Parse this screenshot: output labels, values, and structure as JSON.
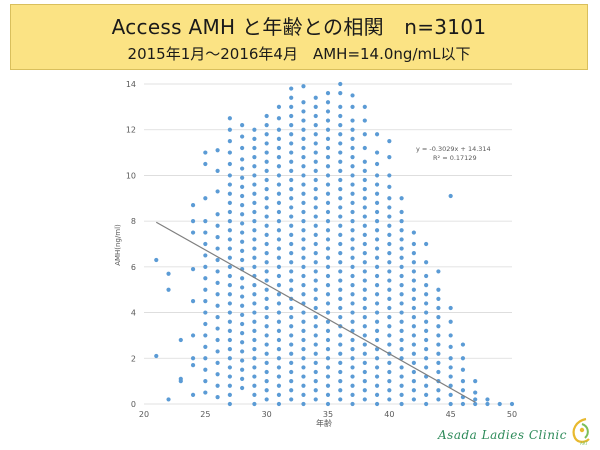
{
  "header": {
    "title": "Access AMH と年齢との相関　n=3101",
    "subtitle": "2015年1月～2016年4月　AMH=14.0ng/mL以下"
  },
  "footer": {
    "clinic_name": "Asada Ladies Clinic",
    "logo_text": "ART"
  },
  "colors": {
    "point": "#5b9bd5",
    "trendline": "#7f7f7f",
    "grid": "#d9d9d9",
    "axis_text": "#595959",
    "title_bg": "#fbe384"
  },
  "chart_data": {
    "type": "scatter",
    "title": "",
    "xlabel": "年齢",
    "ylabel": "AMH(ng/ml)",
    "xlim": [
      20,
      50
    ],
    "ylim": [
      0,
      14
    ],
    "x_ticks": [
      20,
      25,
      30,
      35,
      40,
      45,
      50
    ],
    "y_ticks": [
      0,
      2,
      4,
      6,
      8,
      10,
      12,
      14
    ],
    "grid": "horizontal",
    "trendline": {
      "slope": -0.3029,
      "intercept": 14.314,
      "equation_label": "y = -0.3029x + 14.314",
      "r2_label": "R² = 0.17129",
      "x_range": [
        21,
        47
      ]
    },
    "series": [
      {
        "points_by_age": [
          {
            "x": 21,
            "y": [
              2.1,
              6.3
            ]
          },
          {
            "x": 22,
            "y": [
              0.2,
              5.0,
              5.7
            ]
          },
          {
            "x": 23,
            "y": [
              1.0,
              1.1,
              2.8
            ]
          },
          {
            "x": 24,
            "y": [
              0.4,
              1.7,
              2.0,
              3.0,
              4.5,
              5.9,
              7.5,
              8.0,
              8.7
            ]
          },
          {
            "x": 25,
            "y": [
              0.5,
              1.0,
              1.5,
              2.0,
              2.5,
              3.0,
              3.5,
              4.0,
              4.5,
              5.0,
              5.5,
              6.0,
              6.5,
              7.0,
              7.5,
              8.0,
              9.0,
              10.5,
              11.0
            ]
          },
          {
            "x": 26,
            "y": [
              0.3,
              0.8,
              1.3,
              1.8,
              2.3,
              2.8,
              3.3,
              3.8,
              4.3,
              4.8,
              5.3,
              5.8,
              6.3,
              6.8,
              7.3,
              7.8,
              8.3,
              9.3,
              10.2,
              11.1
            ]
          },
          {
            "x": 27,
            "y": [
              0.0,
              0.4,
              0.8,
              1.2,
              1.6,
              2.0,
              2.4,
              2.8,
              3.2,
              3.6,
              4.0,
              4.4,
              4.8,
              5.2,
              5.6,
              6.0,
              6.4,
              6.8,
              7.2,
              7.6,
              8.0,
              8.4,
              8.8,
              9.2,
              9.6,
              10.0,
              10.5,
              11.0,
              11.5,
              12.0,
              12.5
            ]
          },
          {
            "x": 28,
            "y": [
              0.7,
              1.1,
              1.5,
              1.9,
              2.3,
              2.7,
              3.1,
              3.5,
              3.9,
              4.3,
              4.7,
              5.1,
              5.5,
              5.9,
              6.3,
              6.7,
              7.1,
              7.5,
              7.9,
              8.3,
              8.7,
              9.1,
              9.5,
              9.9,
              10.3,
              10.7,
              11.2,
              11.7,
              12.2
            ]
          },
          {
            "x": 29,
            "y": [
              0.0,
              0.4,
              0.8,
              1.2,
              1.6,
              2.0,
              2.4,
              2.8,
              3.2,
              3.6,
              4.0,
              4.4,
              4.8,
              5.2,
              5.6,
              6.0,
              6.4,
              6.8,
              7.2,
              7.6,
              8.0,
              8.4,
              8.8,
              9.2,
              9.6,
              10.0,
              10.4,
              10.8,
              11.2,
              11.6,
              12.0
            ]
          },
          {
            "x": 30,
            "y": [
              0.2,
              0.6,
              1.0,
              1.4,
              1.8,
              2.2,
              2.6,
              3.0,
              3.4,
              3.8,
              4.2,
              4.6,
              5.0,
              5.4,
              5.8,
              6.2,
              6.6,
              7.0,
              7.4,
              7.8,
              8.2,
              8.6,
              9.0,
              9.4,
              9.8,
              10.2,
              10.6,
              11.0,
              11.4,
              11.8,
              12.2,
              12.6
            ]
          },
          {
            "x": 31,
            "y": [
              0.0,
              0.4,
              0.8,
              1.2,
              1.6,
              2.0,
              2.4,
              2.8,
              3.2,
              3.6,
              4.0,
              4.4,
              4.8,
              5.2,
              5.6,
              6.0,
              6.4,
              6.8,
              7.2,
              7.6,
              8.0,
              8.4,
              8.8,
              9.2,
              9.6,
              10.0,
              10.4,
              10.8,
              11.2,
              11.6,
              12.0,
              12.5,
              13.0
            ]
          },
          {
            "x": 32,
            "y": [
              0.2,
              0.6,
              1.0,
              1.4,
              1.8,
              2.2,
              2.6,
              3.0,
              3.4,
              3.8,
              4.2,
              4.6,
              5.0,
              5.4,
              5.8,
              6.2,
              6.6,
              7.0,
              7.4,
              7.8,
              8.2,
              8.6,
              9.0,
              9.4,
              9.8,
              10.2,
              10.6,
              11.0,
              11.4,
              11.8,
              12.2,
              12.6,
              13.0,
              13.4,
              13.8
            ]
          },
          {
            "x": 33,
            "y": [
              0.0,
              0.4,
              0.8,
              1.2,
              1.6,
              2.0,
              2.4,
              2.8,
              3.2,
              3.6,
              4.0,
              4.4,
              4.8,
              5.2,
              5.6,
              6.0,
              6.4,
              6.8,
              7.2,
              7.6,
              8.0,
              8.4,
              8.8,
              9.2,
              9.6,
              10.0,
              10.4,
              10.8,
              11.2,
              11.6,
              12.0,
              12.4,
              12.8,
              13.2,
              13.9
            ]
          },
          {
            "x": 34,
            "y": [
              0.2,
              0.6,
              1.0,
              1.4,
              1.8,
              2.2,
              2.6,
              3.0,
              3.4,
              3.8,
              4.2,
              4.6,
              5.0,
              5.4,
              5.8,
              6.2,
              6.6,
              7.0,
              7.4,
              7.8,
              8.2,
              8.6,
              9.0,
              9.4,
              9.8,
              10.2,
              10.6,
              11.0,
              11.4,
              11.8,
              12.2,
              12.6,
              13.0,
              13.4
            ]
          },
          {
            "x": 35,
            "y": [
              0.0,
              0.4,
              0.8,
              1.2,
              1.6,
              2.0,
              2.4,
              2.8,
              3.2,
              3.6,
              4.0,
              4.4,
              4.8,
              5.2,
              5.6,
              6.0,
              6.4,
              6.8,
              7.2,
              7.6,
              8.0,
              8.4,
              8.8,
              9.2,
              9.6,
              10.0,
              10.4,
              10.8,
              11.2,
              11.6,
              12.0,
              12.4,
              12.8,
              13.2,
              13.6
            ]
          },
          {
            "x": 36,
            "y": [
              0.2,
              0.6,
              1.0,
              1.4,
              1.8,
              2.2,
              2.6,
              3.0,
              3.4,
              3.8,
              4.2,
              4.6,
              5.0,
              5.4,
              5.8,
              6.2,
              6.6,
              7.0,
              7.4,
              7.8,
              8.2,
              8.6,
              9.0,
              9.4,
              9.8,
              10.2,
              10.6,
              11.0,
              11.4,
              11.8,
              12.2,
              12.6,
              13.0,
              13.6,
              14.0
            ]
          },
          {
            "x": 37,
            "y": [
              0.0,
              0.4,
              0.8,
              1.2,
              1.6,
              2.0,
              2.4,
              2.8,
              3.2,
              3.6,
              4.0,
              4.4,
              4.8,
              5.2,
              5.6,
              6.0,
              6.4,
              6.8,
              7.2,
              7.6,
              8.0,
              8.4,
              8.8,
              9.2,
              9.6,
              10.0,
              10.4,
              10.8,
              11.2,
              11.6,
              12.0,
              12.4,
              13.0,
              13.5
            ]
          },
          {
            "x": 38,
            "y": [
              0.2,
              0.6,
              1.0,
              1.4,
              1.8,
              2.2,
              2.6,
              3.0,
              3.4,
              3.8,
              4.2,
              4.6,
              5.0,
              5.4,
              5.8,
              6.2,
              6.6,
              7.0,
              7.4,
              7.8,
              8.2,
              8.6,
              9.0,
              9.4,
              9.8,
              10.2,
              10.6,
              11.2,
              11.8,
              12.4,
              13.0
            ]
          },
          {
            "x": 39,
            "y": [
              0.0,
              0.4,
              0.8,
              1.2,
              1.6,
              2.0,
              2.4,
              2.8,
              3.2,
              3.6,
              4.0,
              4.4,
              4.8,
              5.2,
              5.6,
              6.0,
              6.4,
              6.8,
              7.2,
              7.6,
              8.0,
              8.4,
              8.8,
              9.2,
              9.6,
              10.0,
              10.5,
              11.0,
              11.8
            ]
          },
          {
            "x": 40,
            "y": [
              0.2,
              0.6,
              1.0,
              1.4,
              1.8,
              2.2,
              2.6,
              3.0,
              3.4,
              3.8,
              4.2,
              4.6,
              5.0,
              5.4,
              5.8,
              6.2,
              6.6,
              7.0,
              7.4,
              7.8,
              8.2,
              8.6,
              9.0,
              9.5,
              10.0,
              10.8,
              11.5
            ]
          },
          {
            "x": 41,
            "y": [
              0.0,
              0.4,
              0.8,
              1.2,
              1.6,
              2.0,
              2.4,
              2.8,
              3.2,
              3.6,
              4.0,
              4.4,
              4.8,
              5.2,
              5.6,
              6.0,
              6.4,
              6.8,
              7.2,
              7.6,
              8.0,
              8.4,
              9.0
            ]
          },
          {
            "x": 42,
            "y": [
              0.2,
              0.6,
              1.0,
              1.4,
              1.8,
              2.2,
              2.6,
              3.0,
              3.4,
              3.8,
              4.2,
              4.6,
              5.0,
              5.4,
              5.8,
              6.2,
              6.6,
              7.0,
              7.5
            ]
          },
          {
            "x": 43,
            "y": [
              0.0,
              0.4,
              0.8,
              1.2,
              1.6,
              2.0,
              2.4,
              2.8,
              3.2,
              3.6,
              4.0,
              4.4,
              4.8,
              5.2,
              5.6,
              6.2,
              7.0
            ]
          },
          {
            "x": 44,
            "y": [
              0.2,
              0.6,
              1.0,
              1.4,
              1.8,
              2.2,
              2.6,
              3.0,
              3.4,
              3.8,
              4.2,
              4.6,
              5.0,
              5.8
            ]
          },
          {
            "x": 45,
            "y": [
              0.0,
              0.4,
              0.8,
              1.2,
              1.6,
              2.0,
              2.5,
              3.0,
              3.6,
              4.2,
              9.1
            ]
          },
          {
            "x": 46,
            "y": [
              0.0,
              0.3,
              0.6,
              1.0,
              1.5,
              2.0,
              2.6
            ]
          },
          {
            "x": 47,
            "y": [
              0.0,
              0.2,
              0.5,
              1.0
            ]
          },
          {
            "x": 48,
            "y": [
              0.0,
              0.2
            ]
          },
          {
            "x": 49,
            "y": [
              0.0
            ]
          },
          {
            "x": 50,
            "y": [
              0.0
            ]
          }
        ]
      }
    ]
  }
}
